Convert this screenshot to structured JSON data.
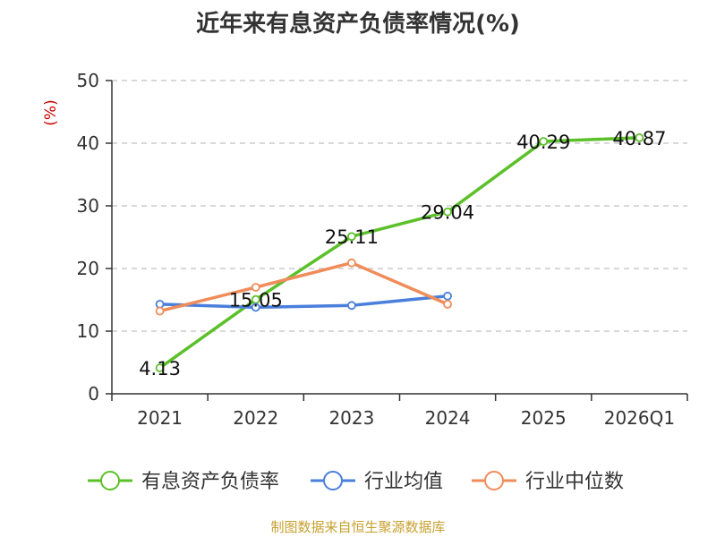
{
  "chart_data": {
    "type": "line",
    "title": "近年来有息资产负债率情况(%)",
    "ylabel": "(%)",
    "xlabel": "",
    "categories": [
      "2021",
      "2022",
      "2023",
      "2024",
      "2025",
      "2026Q1"
    ],
    "ylim": [
      0,
      50
    ],
    "yticks": [
      0,
      10,
      20,
      30,
      40,
      50
    ],
    "grid": true,
    "legend_position": "bottom",
    "series": [
      {
        "name": "有息资产负债率",
        "color": "#5cc02a",
        "values": [
          4.13,
          15.05,
          25.11,
          29.04,
          40.29,
          40.87
        ],
        "labels": [
          "4.13",
          "15.05",
          "25.11",
          "29.04",
          "40.29",
          "40.87"
        ]
      },
      {
        "name": "行业均值",
        "color": "#4a7fdc",
        "values": [
          14.3,
          13.8,
          14.1,
          15.6,
          null,
          null
        ]
      },
      {
        "name": "行业中位数",
        "color": "#f08c5a",
        "values": [
          13.2,
          17.0,
          20.9,
          14.3,
          null,
          null
        ]
      }
    ]
  },
  "source": {
    "text": "制图数据来自恒生聚源数据库",
    "color": "#c8a030"
  },
  "colors": {
    "axis": "#333333",
    "grid": "#cccccc",
    "ylabel": "#cc0000"
  }
}
